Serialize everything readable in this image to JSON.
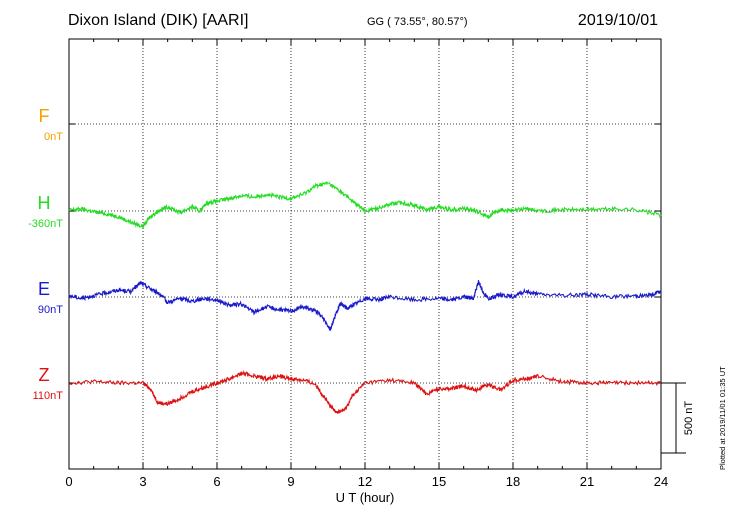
{
  "header": {
    "title": "Dixon Island (DIK)  [AARI]",
    "coordinates": "GG ( 73.55°,  80.57°)",
    "date": "2019/10/01"
  },
  "footer": {
    "plotted": "Plotted at 2019/11/01 01:35 UT"
  },
  "chart_data": {
    "type": "line",
    "xlabel": "U T (hour)",
    "xlim": [
      0,
      24
    ],
    "x_ticks": [
      0,
      3,
      6,
      9,
      12,
      15,
      18,
      21,
      24
    ],
    "scale_bar_label": "500 nT",
    "scale_bar_nT": 500,
    "series": [
      {
        "name": "F",
        "offset_label": "0nT",
        "color": "#f5a000",
        "x": [],
        "y": []
      },
      {
        "name": "H",
        "offset_label": "-360nT",
        "color": "#22dd22",
        "x": [
          0,
          0.5,
          1,
          1.5,
          2,
          2.5,
          3,
          3.3,
          3.6,
          4,
          4.5,
          5,
          5.3,
          5.6,
          6,
          6.5,
          7,
          7.5,
          8,
          8.5,
          9,
          9.5,
          10,
          10.5,
          11,
          11.5,
          12,
          12.5,
          13,
          13.5,
          14,
          14.5,
          15,
          15.5,
          16,
          16.5,
          17,
          17.5,
          18,
          18.5,
          19,
          20,
          21,
          22,
          23,
          24
        ],
        "y": [
          -355,
          -345,
          -365,
          -380,
          -400,
          -440,
          -470,
          -400,
          -360,
          -330,
          -370,
          -330,
          -360,
          -300,
          -290,
          -270,
          -250,
          -260,
          -240,
          -260,
          -270,
          -240,
          -180,
          -160,
          -220,
          -290,
          -360,
          -340,
          -310,
          -300,
          -320,
          -350,
          -330,
          -350,
          -340,
          -360,
          -400,
          -350,
          -360,
          -340,
          -360,
          -350,
          -350,
          -345,
          -350,
          -390
        ]
      },
      {
        "name": "E",
        "offset_label": "90nT",
        "color": "#1a1acc",
        "x": [
          0,
          0.5,
          1,
          1.5,
          2,
          2.5,
          2.9,
          3.3,
          3.7,
          4,
          4.5,
          5,
          5.5,
          6,
          6.5,
          7,
          7.5,
          8,
          8.5,
          9,
          9.5,
          10,
          10.3,
          10.6,
          10.8,
          11,
          11.3,
          11.6,
          12,
          12.5,
          13,
          14,
          15,
          15.5,
          16,
          16.4,
          16.6,
          16.8,
          17,
          17.5,
          18,
          18.5,
          19,
          20,
          21,
          22,
          23,
          23.5,
          24
        ],
        "y": [
          100,
          80,
          100,
          120,
          140,
          130,
          190,
          150,
          110,
          50,
          80,
          60,
          80,
          70,
          30,
          40,
          -20,
          20,
          0,
          -10,
          20,
          -10,
          -60,
          -140,
          -40,
          40,
          10,
          40,
          80,
          70,
          90,
          70,
          80,
          70,
          90,
          80,
          200,
          120,
          80,
          110,
          90,
          130,
          110,
          100,
          110,
          90,
          100,
          100,
          130
        ]
      },
      {
        "name": "Z",
        "offset_label": "110nT",
        "color": "#dd1111",
        "x": [
          0,
          1,
          2,
          3,
          3.3,
          3.6,
          4,
          4.5,
          5,
          5.5,
          6,
          6.5,
          7,
          7.5,
          8,
          8.5,
          9,
          9.5,
          10,
          10.3,
          10.6,
          10.9,
          11.2,
          11.5,
          12,
          13,
          14,
          14.5,
          15,
          15.5,
          16,
          16.5,
          17,
          17.5,
          18,
          18.5,
          19,
          20,
          21,
          22,
          23,
          24
        ],
        "y": [
          110,
          120,
          110,
          110,
          70,
          -30,
          -40,
          0,
          50,
          80,
          110,
          140,
          180,
          160,
          140,
          160,
          140,
          130,
          100,
          20,
          -60,
          -100,
          -80,
          20,
          110,
          130,
          110,
          30,
          70,
          70,
          90,
          60,
          100,
          60,
          130,
          140,
          160,
          120,
          110,
          110,
          110,
          110
        ]
      }
    ]
  }
}
